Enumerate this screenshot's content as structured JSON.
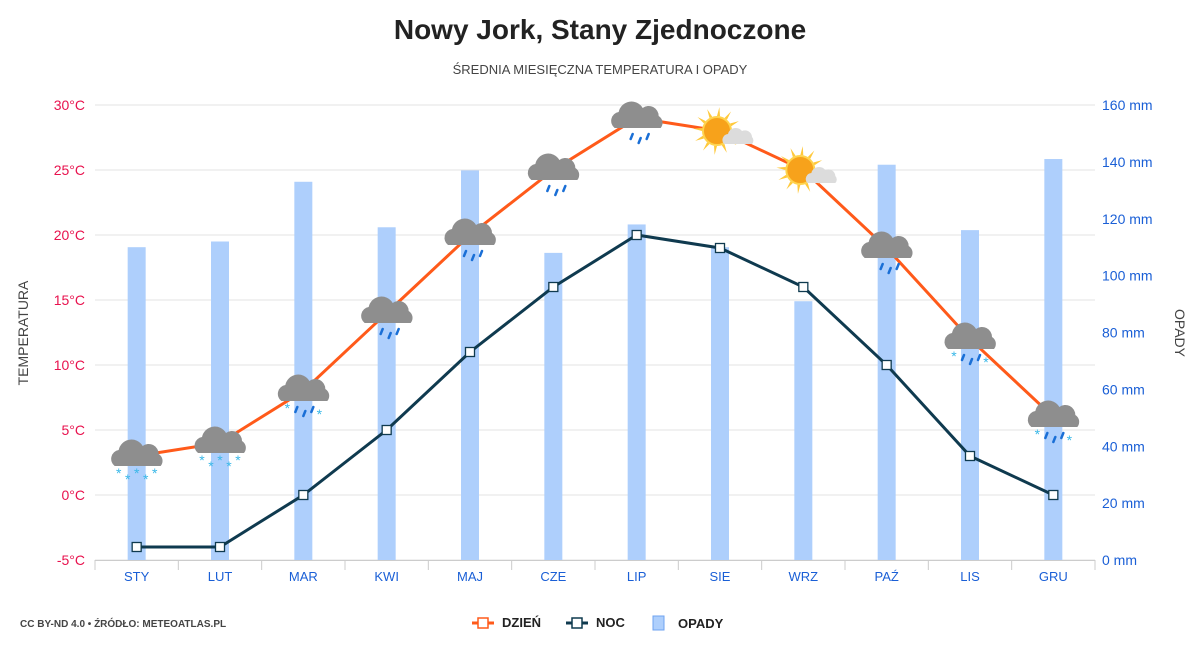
{
  "title": "Nowy Jork, Stany Zjednoczone",
  "subtitle": "ŚREDNIA MIESIĘCZNA TEMPERATURA I OPADY",
  "credit": "CC BY-ND 4.0 • ŹRÓDŁO: METEOATLAS.PL",
  "colors": {
    "day": "#ff5a1a",
    "night": "#0f3a4f",
    "precip": "#aecffc",
    "left_axis": "#e8124e",
    "right_axis": "#1a5fd6"
  },
  "chart_data": {
    "type": "bar+line",
    "categories": [
      "STY",
      "LUT",
      "MAR",
      "KWI",
      "MAJ",
      "CZE",
      "LIP",
      "SIE",
      "WRZ",
      "PAŹ",
      "LIS",
      "GRU"
    ],
    "series": [
      {
        "name": "DZIEŃ",
        "type": "line",
        "axis": "left",
        "values": [
          3,
          4,
          8,
          14,
          20,
          25,
          29,
          28,
          25,
          19,
          12,
          6
        ]
      },
      {
        "name": "NOC",
        "type": "line",
        "axis": "left",
        "values": [
          -4,
          -4,
          0,
          5,
          11,
          16,
          20,
          19,
          16,
          10,
          3,
          0
        ]
      },
      {
        "name": "OPADY",
        "type": "bar",
        "axis": "right",
        "values": [
          110,
          112,
          133,
          117,
          137,
          108,
          118,
          110,
          91,
          139,
          116,
          141
        ]
      }
    ],
    "weather_icons": [
      "cloud-snow",
      "cloud-snow",
      "cloud-sleet",
      "cloud-rain",
      "cloud-rain",
      "cloud-rain",
      "cloud-rain",
      "sun-cloud",
      "sun-cloud",
      "cloud-rain",
      "cloud-sleet",
      "cloud-sleet"
    ],
    "ylabel_left": "TEMPERATURA",
    "ylabel_right": "OPADY",
    "ylim_left": [
      -5,
      30
    ],
    "ylim_right": [
      0,
      160
    ],
    "yticks_left": [
      "-5°C",
      "0°C",
      "5°C",
      "10°C",
      "15°C",
      "20°C",
      "25°C",
      "30°C"
    ],
    "yticks_right": [
      "0 mm",
      "20 mm",
      "40 mm",
      "60 mm",
      "80 mm",
      "100 mm",
      "120 mm",
      "140 mm",
      "160 mm"
    ],
    "grid": true,
    "legend": "bottom-center"
  }
}
